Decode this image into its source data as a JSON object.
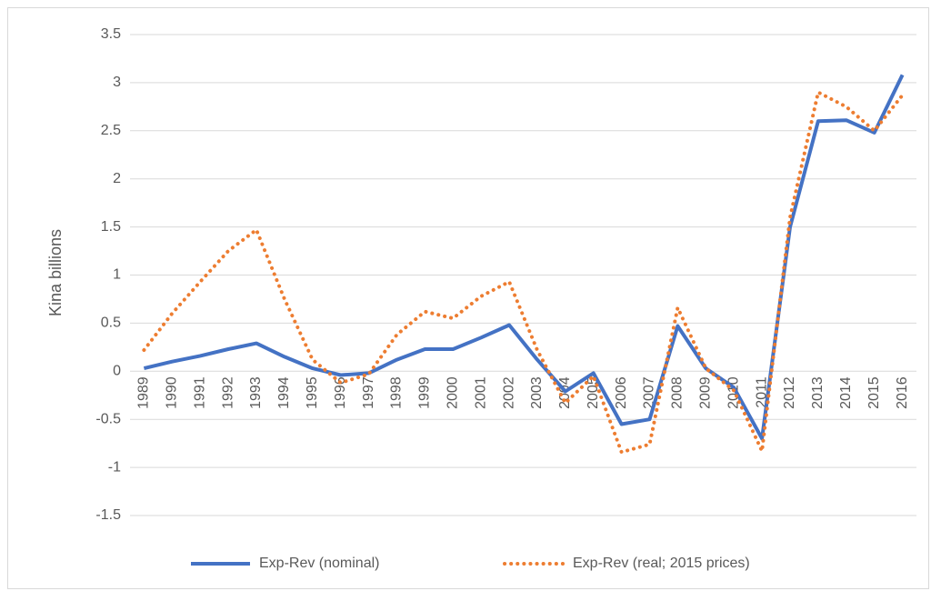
{
  "chart_data": {
    "type": "line",
    "y_label": "Kina billions",
    "categories": [
      "1989",
      "1990",
      "1991",
      "1992",
      "1993",
      "1994",
      "1995",
      "1996",
      "1997",
      "1998",
      "1999",
      "2000",
      "2001",
      "2002",
      "2003",
      "2004",
      "2005",
      "2006",
      "2007",
      "2008",
      "2009",
      "2010",
      "2011",
      "2012",
      "2013",
      "2014",
      "2015",
      "2016"
    ],
    "series": [
      {
        "name": "Exp-Rev (nominal)",
        "color": "#4472c4",
        "style": "solid",
        "values": [
          0.03,
          0.1,
          0.16,
          0.23,
          0.29,
          0.15,
          0.03,
          -0.04,
          -0.02,
          0.12,
          0.23,
          0.23,
          0.35,
          0.48,
          0.12,
          -0.21,
          -0.02,
          -0.55,
          -0.5,
          0.47,
          0.03,
          -0.17,
          -0.7,
          1.5,
          2.6,
          2.61,
          2.48,
          3.08
        ]
      },
      {
        "name": "Exp-Rev (real; 2015 prices)",
        "color": "#ed7d31",
        "style": "dotted",
        "values": [
          0.22,
          0.6,
          0.93,
          1.25,
          1.47,
          0.75,
          0.12,
          -0.12,
          -0.03,
          0.38,
          0.62,
          0.55,
          0.78,
          0.93,
          0.22,
          -0.33,
          -0.05,
          -0.84,
          -0.76,
          0.66,
          0.03,
          -0.2,
          -0.83,
          1.6,
          2.9,
          2.75,
          2.5,
          2.87
        ]
      }
    ],
    "ylim": [
      -1.5,
      3.5
    ],
    "yticks": [
      -1.5,
      -1,
      -0.5,
      0,
      0.5,
      1,
      1.5,
      2,
      2.5,
      3,
      3.5
    ],
    "grid": true,
    "legend": "bottom"
  }
}
